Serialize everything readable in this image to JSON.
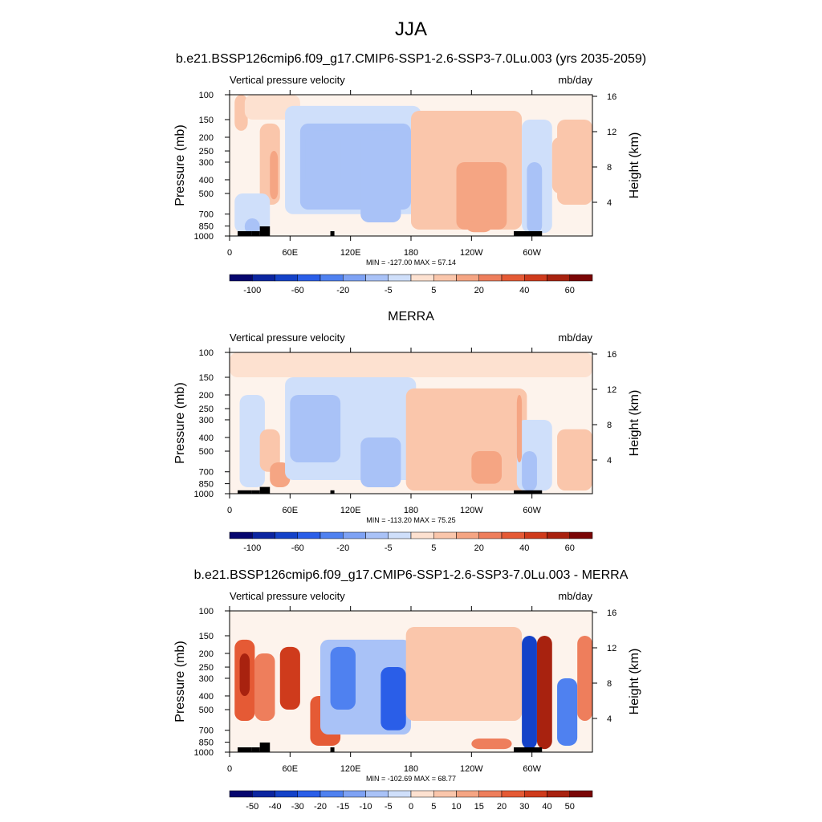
{
  "figure": {
    "title": "JJA"
  },
  "chart_data": [
    {
      "type": "heatmap",
      "title": "b.e21.BSSP126cmip6.f09_g17.CMIP6-SSP1-2.6-SSP3-7.0Lu.003 (yrs 2035-2059)",
      "left_string": "Vertical pressure velocity",
      "right_string": "mb/day",
      "ylabel": "Pressure (mb)",
      "ylabel_right": "Height (km)",
      "x_ticks": [
        "0",
        "60E",
        "120E",
        "180",
        "120W",
        "60W"
      ],
      "y_ticks": [
        "100",
        "150",
        "200",
        "250",
        "300",
        "400",
        "500",
        "700",
        "850",
        "1000"
      ],
      "height_ticks": [
        "16",
        "12",
        "8",
        "4"
      ],
      "xlim": [
        0,
        360
      ],
      "ylim": [
        1000,
        100
      ],
      "y_scale": "log",
      "minmax": "MIN = -127.00  MAX =  57.14",
      "colorbar": {
        "labels": [
          "-100",
          "-60",
          "-20",
          "-5",
          "5",
          "20",
          "40",
          "60"
        ],
        "colors": [
          "#06066e",
          "#0b25a0",
          "#1442c8",
          "#2a5ee8",
          "#4f81f0",
          "#7ea2f4",
          "#a9c2f7",
          "#cfdffa",
          "#fde1d0",
          "#fac6ab",
          "#f5a583",
          "#ee7e5c",
          "#e55a35",
          "#cf3b1c",
          "#a8220f",
          "#7a0606"
        ]
      },
      "field": {
        "min": -127.0,
        "max": 57.14,
        "cells": [
          {
            "lon": [
              5,
              18
            ],
            "lev": [
              100,
              180
            ],
            "v": 5
          },
          {
            "lon": [
              15,
              70
            ],
            "lev": [
              100,
              150
            ],
            "v": -2
          },
          {
            "lon": [
              30,
              50
            ],
            "lev": [
              160,
              600
            ],
            "v": 10
          },
          {
            "lon": [
              40,
              48
            ],
            "lev": [
              250,
              550
            ],
            "v": 20
          },
          {
            "lon": [
              5,
              40
            ],
            "lev": [
              500,
              950
            ],
            "v": -20
          },
          {
            "lon": [
              15,
              30
            ],
            "lev": [
              750,
              980
            ],
            "v": -45
          },
          {
            "lon": [
              55,
              190
            ],
            "lev": [
              120,
              700
            ],
            "v": -10
          },
          {
            "lon": [
              70,
              180
            ],
            "lev": [
              160,
              650
            ],
            "v": -25
          },
          {
            "lon": [
              75,
              110
            ],
            "lev": [
              180,
              450
            ],
            "v": -45
          },
          {
            "lon": [
              130,
              170
            ],
            "lev": [
              180,
              800
            ],
            "v": -40
          },
          {
            "lon": [
              180,
              290
            ],
            "lev": [
              130,
              900
            ],
            "v": 5
          },
          {
            "lon": [
              195,
              280
            ],
            "lev": [
              180,
              850
            ],
            "v": 15
          },
          {
            "lon": [
              225,
              275
            ],
            "lev": [
              300,
              900
            ],
            "v": 25
          },
          {
            "lon": [
              235,
              260
            ],
            "lev": [
              780,
              940
            ],
            "v": 35
          },
          {
            "lon": [
              290,
              320
            ],
            "lev": [
              150,
              950
            ],
            "v": -15
          },
          {
            "lon": [
              295,
              310
            ],
            "lev": [
              300,
              960
            ],
            "v": -50
          },
          {
            "lon": [
              325,
              360
            ],
            "lev": [
              150,
              600
            ],
            "v": 5
          },
          {
            "lon": [
              320,
              335
            ],
            "lev": [
              200,
              500
            ],
            "v": 15
          }
        ]
      }
    },
    {
      "type": "heatmap",
      "title": "MERRA",
      "left_string": "Vertical pressure velocity",
      "right_string": "mb/day",
      "ylabel": "Pressure (mb)",
      "ylabel_right": "Height (km)",
      "x_ticks": [
        "0",
        "60E",
        "120E",
        "180",
        "120W",
        "60W"
      ],
      "y_ticks": [
        "100",
        "150",
        "200",
        "250",
        "300",
        "400",
        "500",
        "700",
        "850",
        "1000"
      ],
      "height_ticks": [
        "16",
        "12",
        "8",
        "4"
      ],
      "xlim": [
        0,
        360
      ],
      "ylim": [
        1000,
        100
      ],
      "y_scale": "log",
      "minmax": "MIN = -113.20  MAX =  75.25",
      "colorbar": {
        "labels": [
          "-100",
          "-60",
          "-20",
          "-5",
          "5",
          "20",
          "40",
          "60"
        ],
        "colors": [
          "#06066e",
          "#0b25a0",
          "#1442c8",
          "#2a5ee8",
          "#4f81f0",
          "#7ea2f4",
          "#a9c2f7",
          "#cfdffa",
          "#fde1d0",
          "#fac6ab",
          "#f5a583",
          "#ee7e5c",
          "#e55a35",
          "#cf3b1c",
          "#a8220f",
          "#7a0606"
        ]
      },
      "field": {
        "min": -113.2,
        "max": 75.25,
        "cells": [
          {
            "lon": [
              0,
              360
            ],
            "lev": [
              100,
              150
            ],
            "v": -2
          },
          {
            "lon": [
              10,
              35
            ],
            "lev": [
              200,
              900
            ],
            "v": -15
          },
          {
            "lon": [
              30,
              50
            ],
            "lev": [
              350,
              700
            ],
            "v": 10
          },
          {
            "lon": [
              40,
              60
            ],
            "lev": [
              600,
              900
            ],
            "v": 25
          },
          {
            "lon": [
              55,
              185
            ],
            "lev": [
              150,
              800
            ],
            "v": -10
          },
          {
            "lon": [
              60,
              110
            ],
            "lev": [
              200,
              600
            ],
            "v": -25
          },
          {
            "lon": [
              130,
              170
            ],
            "lev": [
              400,
              900
            ],
            "v": -30
          },
          {
            "lon": [
              175,
              295
            ],
            "lev": [
              180,
              950
            ],
            "v": 5
          },
          {
            "lon": [
              200,
              280
            ],
            "lev": [
              250,
              850
            ],
            "v": 15
          },
          {
            "lon": [
              240,
              270
            ],
            "lev": [
              500,
              850
            ],
            "v": 25
          },
          {
            "lon": [
              285,
              320
            ],
            "lev": [
              300,
              950
            ],
            "v": -20
          },
          {
            "lon": [
              290,
              305
            ],
            "lev": [
              500,
              960
            ],
            "v": -40
          },
          {
            "lon": [
              285,
              290
            ],
            "lev": [
              200,
              600
            ],
            "v": 30
          },
          {
            "lon": [
              325,
              360
            ],
            "lev": [
              350,
              950
            ],
            "v": 12
          }
        ]
      }
    },
    {
      "type": "heatmap",
      "title": "b.e21.BSSP126cmip6.f09_g17.CMIP6-SSP1-2.6-SSP3-7.0Lu.003 - MERRA",
      "left_string": "Vertical pressure velocity",
      "right_string": "mb/day",
      "ylabel": "Pressure (mb)",
      "ylabel_right": "Height (km)",
      "x_ticks": [
        "0",
        "60E",
        "120E",
        "180",
        "120W",
        "60W"
      ],
      "y_ticks": [
        "100",
        "150",
        "200",
        "250",
        "300",
        "400",
        "500",
        "700",
        "850",
        "1000"
      ],
      "height_ticks": [
        "16",
        "12",
        "8",
        "4"
      ],
      "xlim": [
        0,
        360
      ],
      "ylim": [
        1000,
        100
      ],
      "y_scale": "log",
      "minmax": "MIN = -102.69  MAX =  68.77",
      "colorbar": {
        "labels": [
          "-50",
          "-40",
          "-30",
          "-20",
          "-15",
          "-10",
          "-5",
          "0",
          "5",
          "10",
          "15",
          "20",
          "30",
          "40",
          "50"
        ],
        "colors": [
          "#06066e",
          "#0b25a0",
          "#1442c8",
          "#2a5ee8",
          "#4f81f0",
          "#7ea2f4",
          "#a9c2f7",
          "#cfdffa",
          "#fde1d0",
          "#fac6ab",
          "#f5a583",
          "#ee7e5c",
          "#e55a35",
          "#cf3b1c",
          "#a8220f",
          "#7a0606"
        ]
      },
      "field": {
        "min": -102.69,
        "max": 68.77,
        "cells": [
          {
            "lon": [
              5,
              25
            ],
            "lev": [
              160,
              600
            ],
            "v": 15
          },
          {
            "lon": [
              10,
              20
            ],
            "lev": [
              200,
              400
            ],
            "v": 35
          },
          {
            "lon": [
              25,
              45
            ],
            "lev": [
              200,
              600
            ],
            "v": 12
          },
          {
            "lon": [
              50,
              70
            ],
            "lev": [
              180,
              500
            ],
            "v": 25
          },
          {
            "lon": [
              80,
              110
            ],
            "lev": [
              400,
              900
            ],
            "v": 18
          },
          {
            "lon": [
              90,
              180
            ],
            "lev": [
              160,
              750
            ],
            "v": -12
          },
          {
            "lon": [
              100,
              125
            ],
            "lev": [
              180,
              500
            ],
            "v": -30
          },
          {
            "lon": [
              150,
              175
            ],
            "lev": [
              250,
              700
            ],
            "v": -35
          },
          {
            "lon": [
              175,
              290
            ],
            "lev": [
              130,
              600
            ],
            "v": 3
          },
          {
            "lon": [
              240,
              280
            ],
            "lev": [
              800,
              950
            ],
            "v": 12
          },
          {
            "lon": [
              290,
              305
            ],
            "lev": [
              150,
              950
            ],
            "v": -45
          },
          {
            "lon": [
              305,
              320
            ],
            "lev": [
              150,
              950
            ],
            "v": 35
          },
          {
            "lon": [
              325,
              345
            ],
            "lev": [
              300,
              900
            ],
            "v": -25
          },
          {
            "lon": [
              345,
              360
            ],
            "lev": [
              150,
              600
            ],
            "v": 10
          }
        ]
      }
    }
  ]
}
